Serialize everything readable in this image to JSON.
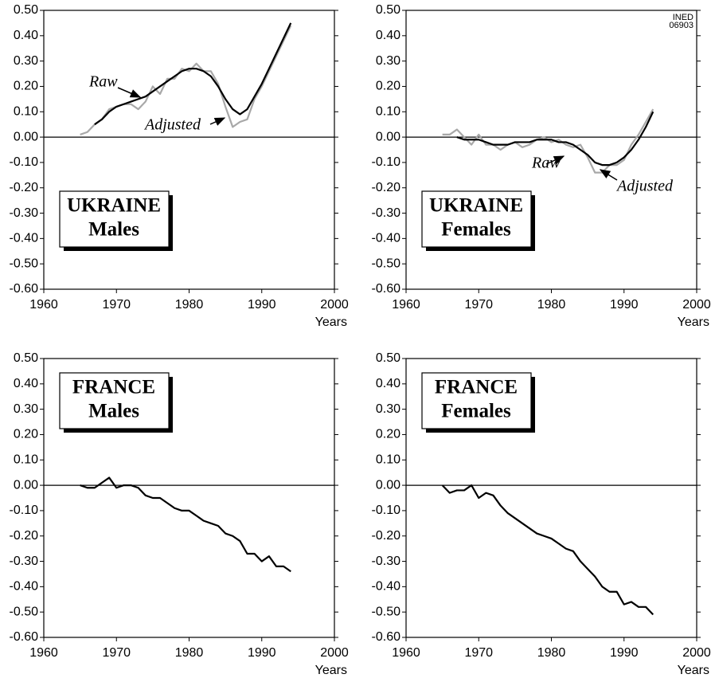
{
  "chart_data": [
    {
      "type": "line",
      "title": "UKRAINE",
      "subtitle": "Males",
      "xlabel": "Years",
      "x": [
        1965,
        1966,
        1967,
        1968,
        1969,
        1970,
        1971,
        1972,
        1973,
        1974,
        1975,
        1976,
        1977,
        1978,
        1979,
        1980,
        1981,
        1982,
        1983,
        1984,
        1985,
        1986,
        1987,
        1988,
        1989,
        1990,
        1991,
        1992,
        1993,
        1994
      ],
      "series": [
        {
          "name": "Raw",
          "color": "#a8a8a8",
          "values": [
            0.01,
            0.02,
            0.05,
            0.07,
            0.11,
            0.12,
            0.13,
            0.13,
            0.11,
            0.14,
            0.2,
            0.17,
            0.23,
            0.23,
            0.27,
            0.26,
            0.29,
            0.26,
            0.26,
            0.21,
            0.12,
            0.04,
            0.06,
            0.07,
            0.15,
            0.2,
            0.26,
            0.32,
            0.38,
            0.44
          ]
        },
        {
          "name": "Adjusted",
          "color": "#000000",
          "values": [
            null,
            null,
            0.05,
            0.07,
            0.1,
            0.12,
            0.13,
            0.14,
            0.15,
            0.16,
            0.18,
            0.2,
            0.22,
            0.24,
            0.26,
            0.27,
            0.27,
            0.26,
            0.24,
            0.2,
            0.15,
            0.11,
            0.09,
            0.11,
            0.16,
            0.21,
            0.27,
            0.33,
            0.39,
            0.45
          ]
        }
      ],
      "xlim": [
        1960,
        2000
      ],
      "xticks": [
        1960,
        1970,
        1980,
        1990,
        2000
      ],
      "ylim": [
        -0.6,
        0.5
      ],
      "yticks": [
        {
          "value": 0.5,
          "label": "0.50"
        },
        {
          "value": 0.4,
          "label": "0.40"
        },
        {
          "value": 0.3,
          "label": "0.30"
        },
        {
          "value": 0.2,
          "label": "0.20"
        },
        {
          "value": 0.1,
          "label": "0.10"
        },
        {
          "value": 0,
          "label": "0.00"
        },
        {
          "value": -0.1,
          "label": "-0.10"
        },
        {
          "value": -0.2,
          "label": "-0.20"
        },
        {
          "value": -0.3,
          "label": "-0.30"
        },
        {
          "value": -0.4,
          "label": "-0.40"
        },
        {
          "value": -0.5,
          "label": "-0.50"
        },
        {
          "value": -0.6,
          "label": "-0.60"
        }
      ]
    },
    {
      "type": "line",
      "title": "UKRAINE",
      "subtitle": "Females",
      "xlabel": "Years",
      "note": [
        "INED",
        "06903"
      ],
      "x": [
        1965,
        1966,
        1967,
        1968,
        1969,
        1970,
        1971,
        1972,
        1973,
        1974,
        1975,
        1976,
        1977,
        1978,
        1979,
        1980,
        1981,
        1982,
        1983,
        1984,
        1985,
        1986,
        1987,
        1988,
        1989,
        1990,
        1991,
        1992,
        1993,
        1994
      ],
      "series": [
        {
          "name": "Raw",
          "color": "#a8a8a8",
          "values": [
            0.01,
            0.01,
            0.03,
            0.0,
            -0.03,
            0.01,
            -0.03,
            -0.03,
            -0.05,
            -0.03,
            -0.02,
            -0.04,
            -0.03,
            -0.01,
            0.0,
            -0.02,
            -0.01,
            -0.03,
            -0.04,
            -0.03,
            -0.08,
            -0.14,
            -0.14,
            -0.11,
            -0.11,
            -0.09,
            -0.03,
            0.01,
            0.06,
            0.11
          ]
        },
        {
          "name": "Adjusted",
          "color": "#000000",
          "values": [
            null,
            null,
            0.0,
            -0.01,
            -0.01,
            -0.01,
            -0.02,
            -0.03,
            -0.03,
            -0.03,
            -0.02,
            -0.02,
            -0.02,
            -0.01,
            -0.01,
            -0.01,
            -0.02,
            -0.02,
            -0.03,
            -0.05,
            -0.07,
            -0.1,
            -0.11,
            -0.11,
            -0.1,
            -0.08,
            -0.05,
            -0.01,
            0.04,
            0.1
          ]
        }
      ],
      "xlim": [
        1960,
        2000
      ],
      "xticks": [
        1960,
        1970,
        1980,
        1990,
        2000
      ],
      "ylim": [
        -0.6,
        0.5
      ],
      "yticks": [
        {
          "value": 0.5,
          "label": "0.50"
        },
        {
          "value": 0.4,
          "label": "0.40"
        },
        {
          "value": 0.3,
          "label": "0.30"
        },
        {
          "value": 0.2,
          "label": "0.20"
        },
        {
          "value": 0.1,
          "label": "0.10"
        },
        {
          "value": 0,
          "label": "0.00"
        },
        {
          "value": -0.1,
          "label": "-0.10"
        },
        {
          "value": -0.2,
          "label": "-0.20"
        },
        {
          "value": -0.3,
          "label": "-0.30"
        },
        {
          "value": -0.4,
          "label": "-0.40"
        },
        {
          "value": -0.5,
          "label": "-0.50"
        },
        {
          "value": -0.6,
          "label": "-0.60"
        }
      ]
    },
    {
      "type": "line",
      "title": "FRANCE",
      "subtitle": "Males",
      "xlabel": "Years",
      "x": [
        1965,
        1966,
        1967,
        1968,
        1969,
        1970,
        1971,
        1972,
        1973,
        1974,
        1975,
        1976,
        1977,
        1978,
        1979,
        1980,
        1981,
        1982,
        1983,
        1984,
        1985,
        1986,
        1987,
        1988,
        1989,
        1990,
        1991,
        1992,
        1993,
        1994
      ],
      "series": [
        {
          "color": "#000000",
          "values": [
            0.0,
            -0.01,
            -0.01,
            0.01,
            0.03,
            -0.01,
            0.0,
            0.0,
            -0.01,
            -0.04,
            -0.05,
            -0.05,
            -0.07,
            -0.09,
            -0.1,
            -0.1,
            -0.12,
            -0.14,
            -0.15,
            -0.16,
            -0.19,
            -0.2,
            -0.22,
            -0.27,
            -0.27,
            -0.3,
            -0.28,
            -0.32,
            -0.32,
            -0.34
          ]
        }
      ],
      "xlim": [
        1960,
        2000
      ],
      "xticks": [
        1960,
        1970,
        1980,
        1990,
        2000
      ],
      "ylim": [
        -0.6,
        0.5
      ],
      "yticks": [
        {
          "value": 0.5,
          "label": "0.50"
        },
        {
          "value": 0.4,
          "label": "0.40"
        },
        {
          "value": 0.3,
          "label": "0.30"
        },
        {
          "value": 0.2,
          "label": "0.20"
        },
        {
          "value": 0.1,
          "label": "0.10"
        },
        {
          "value": 0,
          "label": "0.00"
        },
        {
          "value": -0.1,
          "label": "-0.10"
        },
        {
          "value": -0.2,
          "label": "-0.20"
        },
        {
          "value": -0.3,
          "label": "-0.30"
        },
        {
          "value": -0.4,
          "label": "-0.40"
        },
        {
          "value": -0.5,
          "label": "-0.50"
        },
        {
          "value": -0.6,
          "label": "-0.60"
        }
      ]
    },
    {
      "type": "line",
      "title": "FRANCE",
      "subtitle": "Females",
      "xlabel": "Years",
      "x": [
        1965,
        1966,
        1967,
        1968,
        1969,
        1970,
        1971,
        1972,
        1973,
        1974,
        1975,
        1976,
        1977,
        1978,
        1979,
        1980,
        1981,
        1982,
        1983,
        1984,
        1985,
        1986,
        1987,
        1988,
        1989,
        1990,
        1991,
        1992,
        1993,
        1994
      ],
      "series": [
        {
          "color": "#000000",
          "values": [
            0.0,
            -0.03,
            -0.02,
            -0.02,
            0.0,
            -0.05,
            -0.03,
            -0.04,
            -0.08,
            -0.11,
            -0.13,
            -0.15,
            -0.17,
            -0.19,
            -0.2,
            -0.21,
            -0.23,
            -0.25,
            -0.26,
            -0.3,
            -0.33,
            -0.36,
            -0.4,
            -0.42,
            -0.42,
            -0.47,
            -0.46,
            -0.48,
            -0.48,
            -0.51
          ]
        }
      ],
      "xlim": [
        1960,
        2000
      ],
      "xticks": [
        1960,
        1970,
        1980,
        1990,
        2000
      ],
      "ylim": [
        -0.6,
        0.5
      ],
      "yticks": [
        {
          "value": 0.5,
          "label": "0.50"
        },
        {
          "value": 0.4,
          "label": "0.40"
        },
        {
          "value": 0.3,
          "label": "0.30"
        },
        {
          "value": 0.2,
          "label": "0.20"
        },
        {
          "value": 0.1,
          "label": "0.10"
        },
        {
          "value": 0,
          "label": "0.00"
        },
        {
          "value": -0.1,
          "label": "-0.10"
        },
        {
          "value": -0.2,
          "label": "-0.20"
        },
        {
          "value": -0.3,
          "label": "-0.30"
        },
        {
          "value": -0.4,
          "label": "-0.40"
        },
        {
          "value": -0.5,
          "label": "-0.50"
        },
        {
          "value": -0.6,
          "label": "-0.60"
        }
      ]
    }
  ]
}
